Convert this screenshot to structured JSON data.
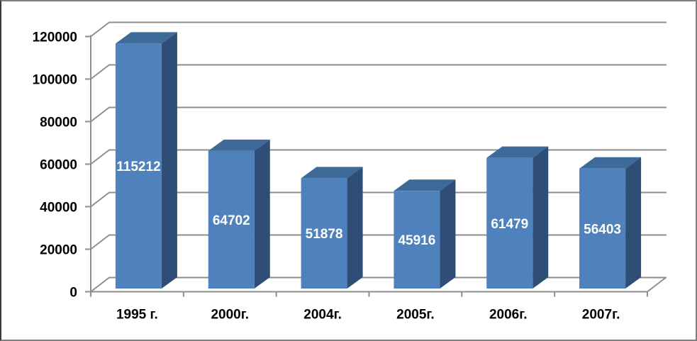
{
  "chart_data": {
    "type": "bar",
    "style": "3d-column",
    "title": "",
    "xlabel": "",
    "ylabel": "",
    "categories": [
      "1995 г.",
      "2000г.",
      "2004г.",
      "2005г.",
      "2006г.",
      "2007г."
    ],
    "series": [
      {
        "name": "",
        "values": [
          115212,
          64702,
          51878,
          45916,
          61479,
          56403
        ]
      }
    ],
    "data_labels": [
      "115212",
      "64702",
      "51878",
      "45916",
      "61479",
      "56403"
    ],
    "y_ticks": [
      0,
      20000,
      40000,
      60000,
      80000,
      100000,
      120000
    ],
    "y_tick_labels": [
      "0",
      "20000",
      "40000",
      "60000",
      "80000",
      "100000",
      "120000"
    ],
    "ylim": [
      0,
      120000
    ],
    "grid": true,
    "legend": "none",
    "colors": {
      "bar_front": "#4F82BD",
      "bar_top": "#3D6A99",
      "bar_side": "#2E4E77",
      "gridline": "#8E8E8E",
      "axis_line": "#8E8E8E",
      "tick_label": "#000000",
      "category_label": "#000000",
      "data_label": "#FFFFFF",
      "background": "#FFFFFF",
      "frame_border": "#7F7F7F"
    }
  }
}
